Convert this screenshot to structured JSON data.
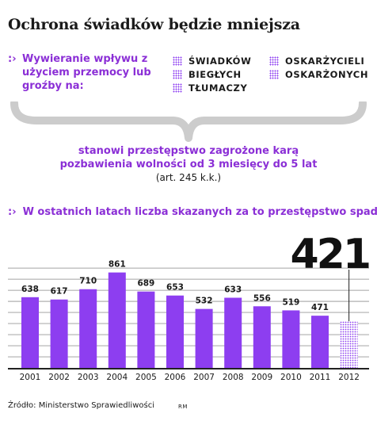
{
  "title": "Ochrona świadków będzie mniejsza",
  "intro": {
    "bullet": ":›",
    "text": "Wywieranie wpływu z użyciem przemocy lub groźby na:"
  },
  "groups": [
    "ŚWIADKÓW",
    "BIEGŁYCH",
    "TŁUMACZY",
    "OSKARŻYCIELI",
    "OSKARŻONYCH"
  ],
  "penalty": {
    "line1": "stanowi przestępstwo zagrożone karą",
    "line2": "pozbawienia wolności od 3 miesięcy do 5 lat",
    "line3": "(art. 245 k.k.)"
  },
  "chart_heading": {
    "bullet": ":›",
    "text": "W ostatnich latach liczba skazanych za to przestępstwo spada"
  },
  "colors": {
    "accent": "#8b2fd6",
    "bar": "#8d3ef0",
    "grid": "#bdbdbd"
  },
  "chart_data": {
    "type": "bar",
    "categories": [
      "2001",
      "2002",
      "2003",
      "2004",
      "2005",
      "2006",
      "2007",
      "2008",
      "2009",
      "2010",
      "2011",
      "2012"
    ],
    "values": [
      638,
      617,
      710,
      861,
      689,
      653,
      532,
      633,
      556,
      519,
      471,
      421
    ],
    "value_labels": [
      "638",
      "617",
      "710",
      "861",
      "689",
      "653",
      "532",
      "633",
      "556",
      "519",
      "471",
      "421"
    ],
    "ylim": [
      0,
      1000
    ],
    "grid": true,
    "highlight_last": true,
    "title": "",
    "xlabel": "",
    "ylabel": ""
  },
  "source": "Źródło: Ministerstwo Sprawiedliwości",
  "author": "RM"
}
